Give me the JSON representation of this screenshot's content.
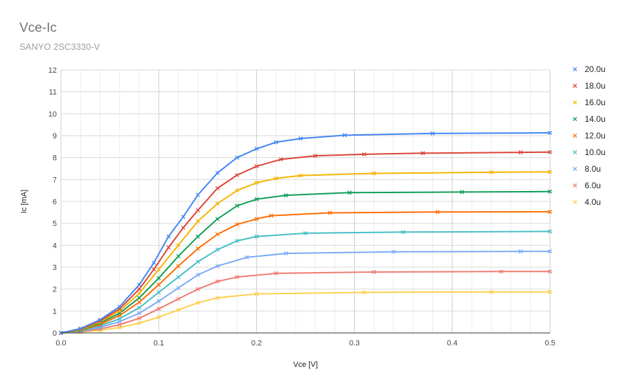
{
  "chart_data": {
    "type": "line",
    "title": "Vce-Ic",
    "subtitle": "SANYO 2SC3330-V",
    "xlabel": "Vce [V]",
    "ylabel": "Ic [mA]",
    "xlim": [
      0,
      0.5
    ],
    "ylim": [
      0,
      12
    ],
    "x_ticks": [
      "0.0",
      "0.1",
      "0.2",
      "0.3",
      "0.4",
      "0.5"
    ],
    "y_ticks": [
      "0",
      "1",
      "2",
      "3",
      "4",
      "5",
      "6",
      "7",
      "8",
      "9",
      "10",
      "11",
      "12"
    ],
    "grid": true,
    "legend_position": "right",
    "series": [
      {
        "name": "20.0u",
        "color": "#4285F4",
        "x": [
          0,
          0.02,
          0.04,
          0.06,
          0.08,
          0.095,
          0.11,
          0.125,
          0.14,
          0.16,
          0.18,
          0.2,
          0.22,
          0.245,
          0.29,
          0.38,
          0.5
        ],
        "y": [
          0,
          0.2,
          0.6,
          1.2,
          2.2,
          3.2,
          4.4,
          5.3,
          6.3,
          7.3,
          8.0,
          8.4,
          8.7,
          8.87,
          9.02,
          9.1,
          9.13
        ]
      },
      {
        "name": "18.0u",
        "color": "#DB4437",
        "x": [
          0,
          0.02,
          0.04,
          0.06,
          0.08,
          0.095,
          0.11,
          0.125,
          0.14,
          0.16,
          0.18,
          0.2,
          0.225,
          0.26,
          0.31,
          0.37,
          0.47,
          0.5
        ],
        "y": [
          0,
          0.18,
          0.55,
          1.1,
          2.0,
          2.9,
          3.9,
          4.8,
          5.6,
          6.6,
          7.2,
          7.6,
          7.92,
          8.08,
          8.15,
          8.2,
          8.24,
          8.25
        ]
      },
      {
        "name": "16.0u",
        "color": "#F4B400",
        "x": [
          0,
          0.02,
          0.04,
          0.06,
          0.08,
          0.1,
          0.12,
          0.14,
          0.16,
          0.18,
          0.2,
          0.22,
          0.245,
          0.32,
          0.44,
          0.5
        ],
        "y": [
          0,
          0.16,
          0.5,
          1.0,
          1.8,
          2.9,
          4.0,
          5.1,
          5.9,
          6.5,
          6.85,
          7.05,
          7.18,
          7.28,
          7.33,
          7.35
        ]
      },
      {
        "name": "14.0u",
        "color": "#0F9D58",
        "x": [
          0,
          0.02,
          0.04,
          0.06,
          0.08,
          0.1,
          0.12,
          0.14,
          0.16,
          0.18,
          0.2,
          0.23,
          0.295,
          0.41,
          0.5
        ],
        "y": [
          0,
          0.14,
          0.45,
          0.9,
          1.6,
          2.5,
          3.5,
          4.4,
          5.2,
          5.8,
          6.1,
          6.28,
          6.4,
          6.43,
          6.45
        ]
      },
      {
        "name": "12.0u",
        "color": "#FF6D01",
        "x": [
          0,
          0.02,
          0.04,
          0.06,
          0.08,
          0.1,
          0.12,
          0.14,
          0.16,
          0.18,
          0.2,
          0.215,
          0.275,
          0.385,
          0.5
        ],
        "y": [
          0,
          0.12,
          0.38,
          0.8,
          1.4,
          2.2,
          3.05,
          3.85,
          4.5,
          4.95,
          5.2,
          5.35,
          5.48,
          5.52,
          5.53
        ]
      },
      {
        "name": "10.0u",
        "color": "#46BDC6",
        "x": [
          0,
          0.02,
          0.04,
          0.06,
          0.08,
          0.1,
          0.12,
          0.14,
          0.16,
          0.18,
          0.2,
          0.25,
          0.35,
          0.5
        ],
        "y": [
          0,
          0.1,
          0.32,
          0.65,
          1.15,
          1.85,
          2.55,
          3.25,
          3.8,
          4.2,
          4.4,
          4.55,
          4.6,
          4.63
        ]
      },
      {
        "name": "8.0u",
        "color": "#7BAAF7",
        "x": [
          0,
          0.02,
          0.04,
          0.06,
          0.08,
          0.1,
          0.12,
          0.14,
          0.16,
          0.19,
          0.23,
          0.34,
          0.47,
          0.5
        ],
        "y": [
          0,
          0.08,
          0.25,
          0.52,
          0.9,
          1.45,
          2.05,
          2.65,
          3.05,
          3.45,
          3.63,
          3.7,
          3.72,
          3.72
        ]
      },
      {
        "name": "6.0u",
        "color": "#F07B72",
        "x": [
          0,
          0.02,
          0.04,
          0.06,
          0.08,
          0.1,
          0.12,
          0.14,
          0.16,
          0.18,
          0.22,
          0.32,
          0.45,
          0.5
        ],
        "y": [
          0,
          0.06,
          0.18,
          0.38,
          0.67,
          1.1,
          1.55,
          2.0,
          2.35,
          2.55,
          2.72,
          2.78,
          2.8,
          2.8
        ]
      },
      {
        "name": "4.0u",
        "color": "#FCD04F",
        "x": [
          0,
          0.02,
          0.04,
          0.06,
          0.08,
          0.1,
          0.12,
          0.14,
          0.16,
          0.2,
          0.31,
          0.44,
          0.5
        ],
        "y": [
          0,
          0.04,
          0.12,
          0.25,
          0.45,
          0.72,
          1.05,
          1.38,
          1.6,
          1.78,
          1.85,
          1.87,
          1.87
        ]
      }
    ]
  }
}
